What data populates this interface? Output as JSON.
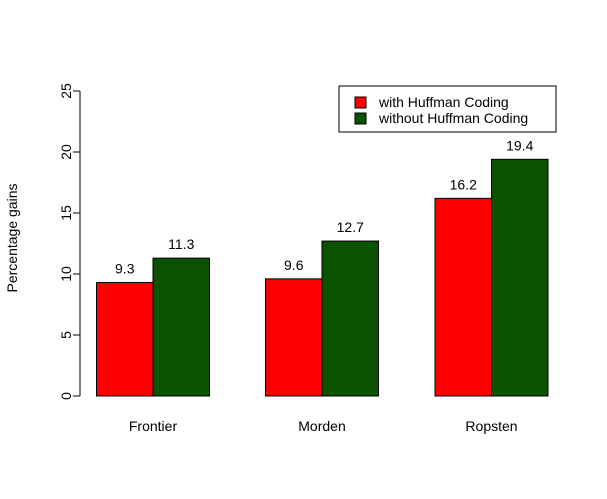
{
  "chart_data": {
    "type": "bar",
    "title": "",
    "xlabel": "",
    "ylabel": "Percentage gains",
    "categories": [
      "Frontier",
      "Morden",
      "Ropsten"
    ],
    "series": [
      {
        "name": "with Huffman Coding",
        "color": "#ff0000",
        "values": [
          9.3,
          9.6,
          16.2
        ]
      },
      {
        "name": "without Huffman Coding",
        "color": "#0a5200",
        "values": [
          11.3,
          12.7,
          19.4
        ]
      }
    ],
    "data_labels": [
      [
        "9.3",
        "11.3"
      ],
      [
        "9.6",
        "12.7"
      ],
      [
        "16.2",
        "19.4"
      ]
    ],
    "ylim": [
      0,
      25
    ],
    "yticks": [
      0,
      5,
      10,
      15,
      20,
      25
    ],
    "grid": false,
    "legend_position": "top-right"
  }
}
